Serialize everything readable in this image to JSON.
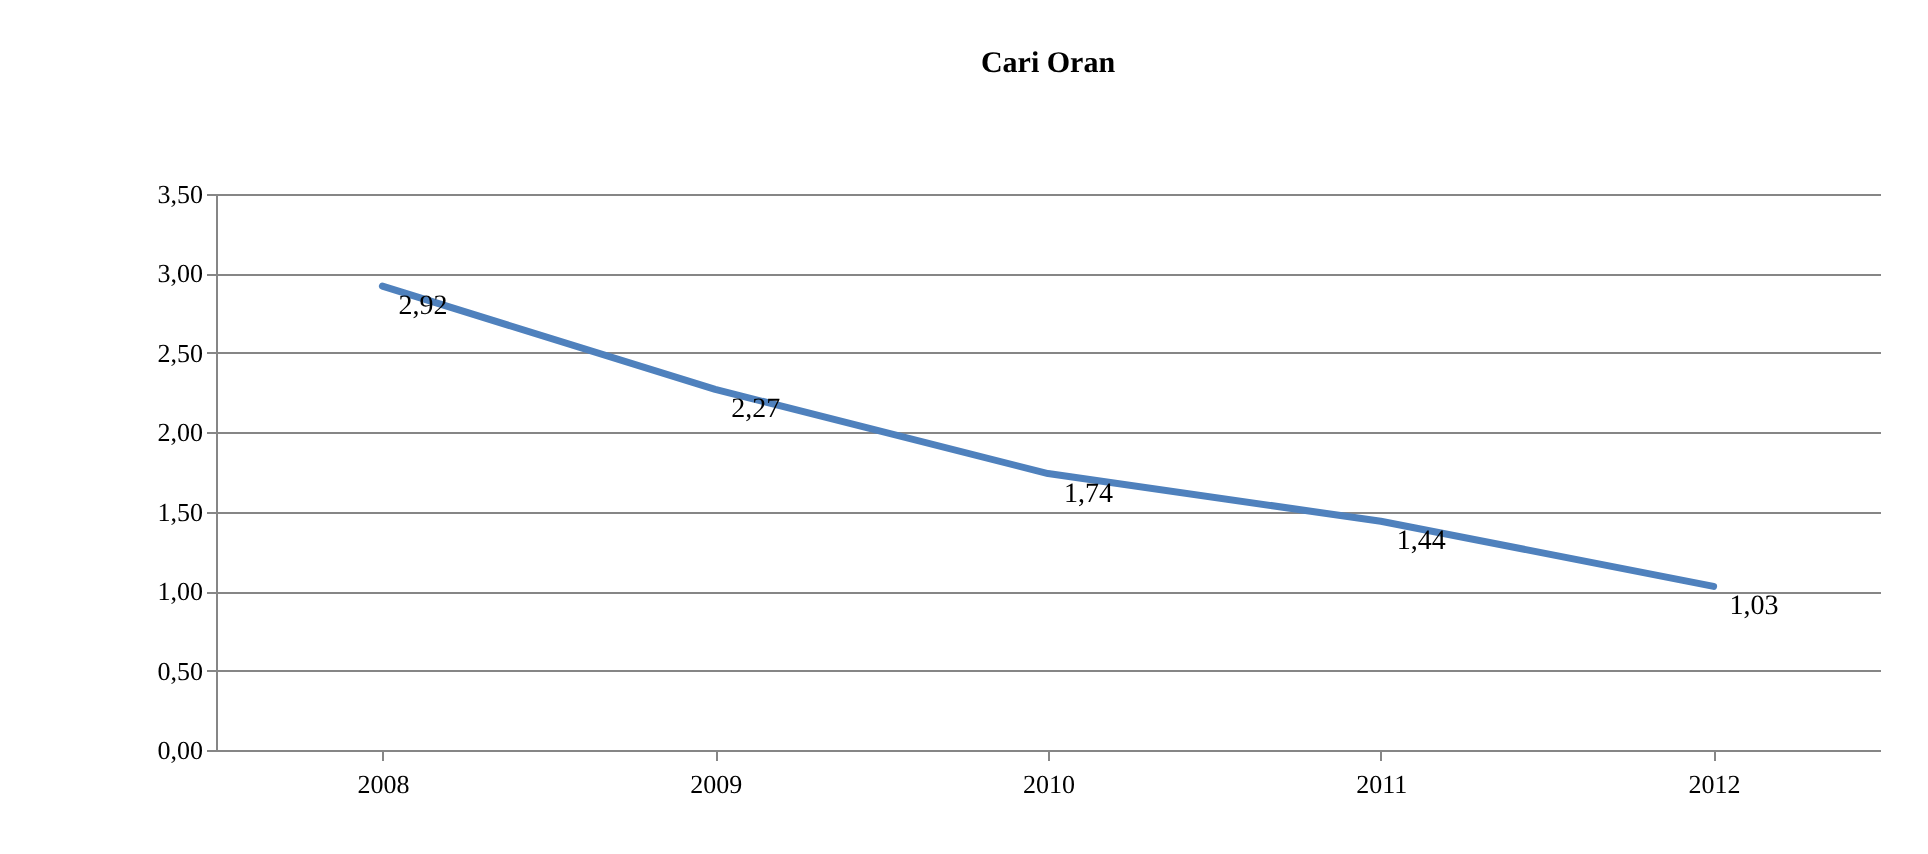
{
  "chart_data": {
    "type": "line",
    "title": "Cari Oran",
    "categories": [
      "2008",
      "2009",
      "2010",
      "2011",
      "2012"
    ],
    "values": [
      2.92,
      2.27,
      1.74,
      1.44,
      1.03
    ],
    "value_labels": [
      "2,92",
      "2,27",
      "1,74",
      "1,44",
      "1,03"
    ],
    "color": "#4f81bd",
    "ylim": [
      0,
      3.5
    ],
    "yticks": [
      {
        "value": 0,
        "label": "0,00"
      },
      {
        "value": 0.5,
        "label": "0,50"
      },
      {
        "value": 1,
        "label": "1,00"
      },
      {
        "value": 1.5,
        "label": "1,50"
      },
      {
        "value": 2,
        "label": "2,00"
      },
      {
        "value": 2.5,
        "label": "2,50"
      },
      {
        "value": 3,
        "label": "3,00"
      },
      {
        "value": 3.5,
        "label": "3,50"
      }
    ],
    "grid": "y"
  }
}
